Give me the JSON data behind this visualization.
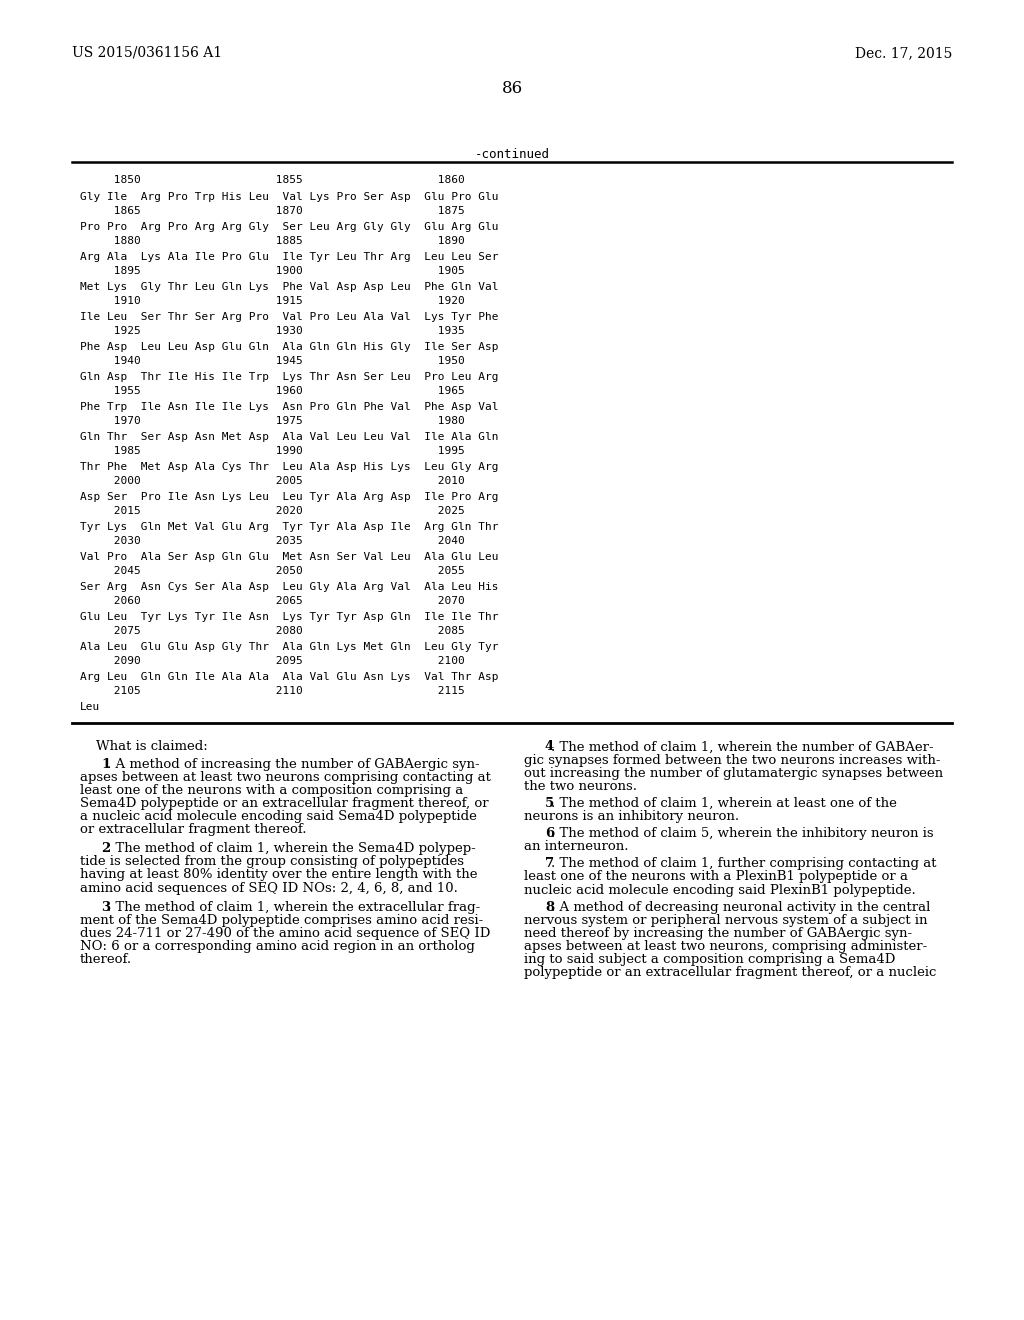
{
  "header_left": "US 2015/0361156 A1",
  "header_right": "Dec. 17, 2015",
  "page_number": "86",
  "continued_label": "-continued",
  "background_color": "#ffffff",
  "sequence_font_size": 8.0,
  "claim_font_size": 9.5,
  "sequence_data": [
    [
      "Gly Ile  Arg Pro Trp His Leu  Val Lys Pro Ser Asp  Glu Pro Glu",
      "     1865                    1870                    1875"
    ],
    [
      "Pro Pro  Arg Pro Arg Arg Gly  Ser Leu Arg Gly Gly  Glu Arg Glu",
      "     1880                    1885                    1890"
    ],
    [
      "Arg Ala  Lys Ala Ile Pro Glu  Ile Tyr Leu Thr Arg  Leu Leu Ser",
      "     1895                    1900                    1905"
    ],
    [
      "Met Lys  Gly Thr Leu Gln Lys  Phe Val Asp Asp Leu  Phe Gln Val",
      "     1910                    1915                    1920"
    ],
    [
      "Ile Leu  Ser Thr Ser Arg Pro  Val Pro Leu Ala Val  Lys Tyr Phe",
      "     1925                    1930                    1935"
    ],
    [
      "Phe Asp  Leu Leu Asp Glu Gln  Ala Gln Gln His Gly  Ile Ser Asp",
      "     1940                    1945                    1950"
    ],
    [
      "Gln Asp  Thr Ile His Ile Trp  Lys Thr Asn Ser Leu  Pro Leu Arg",
      "     1955                    1960                    1965"
    ],
    [
      "Phe Trp  Ile Asn Ile Ile Lys  Asn Pro Gln Phe Val  Phe Asp Val",
      "     1970                    1975                    1980"
    ],
    [
      "Gln Thr  Ser Asp Asn Met Asp  Ala Val Leu Leu Val  Ile Ala Gln",
      "     1985                    1990                    1995"
    ],
    [
      "Thr Phe  Met Asp Ala Cys Thr  Leu Ala Asp His Lys  Leu Gly Arg",
      "     2000                    2005                    2010"
    ],
    [
      "Asp Ser  Pro Ile Asn Lys Leu  Leu Tyr Ala Arg Asp  Ile Pro Arg",
      "     2015                    2020                    2025"
    ],
    [
      "Tyr Lys  Gln Met Val Glu Arg  Tyr Tyr Ala Asp Ile  Arg Gln Thr",
      "     2030                    2035                    2040"
    ],
    [
      "Val Pro  Ala Ser Asp Gln Glu  Met Asn Ser Val Leu  Ala Glu Leu",
      "     2045                    2050                    2055"
    ],
    [
      "Ser Arg  Asn Cys Ser Ala Asp  Leu Gly Ala Arg Val  Ala Leu His",
      "     2060                    2065                    2070"
    ],
    [
      "Glu Leu  Tyr Lys Tyr Ile Asn  Lys Tyr Tyr Asp Gln  Ile Ile Thr",
      "     2075                    2080                    2085"
    ],
    [
      "Ala Leu  Glu Glu Asp Gly Thr  Ala Gln Lys Met Gln  Leu Gly Tyr",
      "     2090                    2095                    2100"
    ],
    [
      "Arg Leu  Gln Gln Ile Ala Ala  Ala Val Glu Asn Lys  Val Thr Asp",
      "     2105                    2110                    2115"
    ]
  ],
  "claims_left": [
    {
      "type": "header",
      "text": "What is claimed:"
    },
    {
      "type": "claim",
      "num": "1",
      "lines": [
        "    1. A method of increasing the number of GABAergic syn-",
        "apses between at least two neurons comprising contacting at",
        "least one of the neurons with a composition comprising a",
        "Sema4D polypeptide or an extracellular fragment thereof, or",
        "a nucleic acid molecule encoding said Sema4D polypeptide",
        "or extracellular fragment thereof."
      ]
    },
    {
      "type": "claim",
      "num": "2",
      "lines": [
        "    2. The method of claim 1, wherein the Sema4D polypep-",
        "tide is selected from the group consisting of polypeptides",
        "having at least 80% identity over the entire length with the",
        "amino acid sequences of SEQ ID NOs: 2, 4, 6, 8, and 10."
      ]
    },
    {
      "type": "claim",
      "num": "3",
      "lines": [
        "    3. The method of claim 1, wherein the extracellular frag-",
        "ment of the Sema4D polypeptide comprises amino acid resi-",
        "dues 24-711 or 27-490 of the amino acid sequence of SEQ ID",
        "NO: 6 or a corresponding amino acid region in an ortholog",
        "thereof."
      ]
    }
  ],
  "claims_right": [
    {
      "type": "claim",
      "num": "4",
      "lines": [
        "    4. The method of claim 1, wherein the number of GABAer-",
        "gic synapses formed between the two neurons increases with-",
        "out increasing the number of glutamatergic synapses between",
        "the two neurons."
      ]
    },
    {
      "type": "claim",
      "num": "5",
      "lines": [
        "    5. The method of claim 1, wherein at least one of the",
        "neurons is an inhibitory neuron."
      ]
    },
    {
      "type": "claim",
      "num": "6",
      "lines": [
        "    6. The method of claim 5, wherein the inhibitory neuron is",
        "an interneuron."
      ]
    },
    {
      "type": "claim",
      "num": "7",
      "lines": [
        "    7. The method of claim 1, further comprising contacting at",
        "least one of the neurons with a PlexinB1 polypeptide or a",
        "nucleic acid molecule encoding said PlexinB1 polypeptide."
      ]
    },
    {
      "type": "claim",
      "num": "8",
      "lines": [
        "    8. A method of decreasing neuronal activity in the central",
        "nervous system or peripheral nervous system of a subject in",
        "need thereof by increasing the number of GABAergic syn-",
        "apses between at least two neurons, comprising administer-",
        "ing to said subject a composition comprising a Sema4D",
        "polypeptide or an extracellular fragment thereof, or a nucleic"
      ]
    }
  ]
}
